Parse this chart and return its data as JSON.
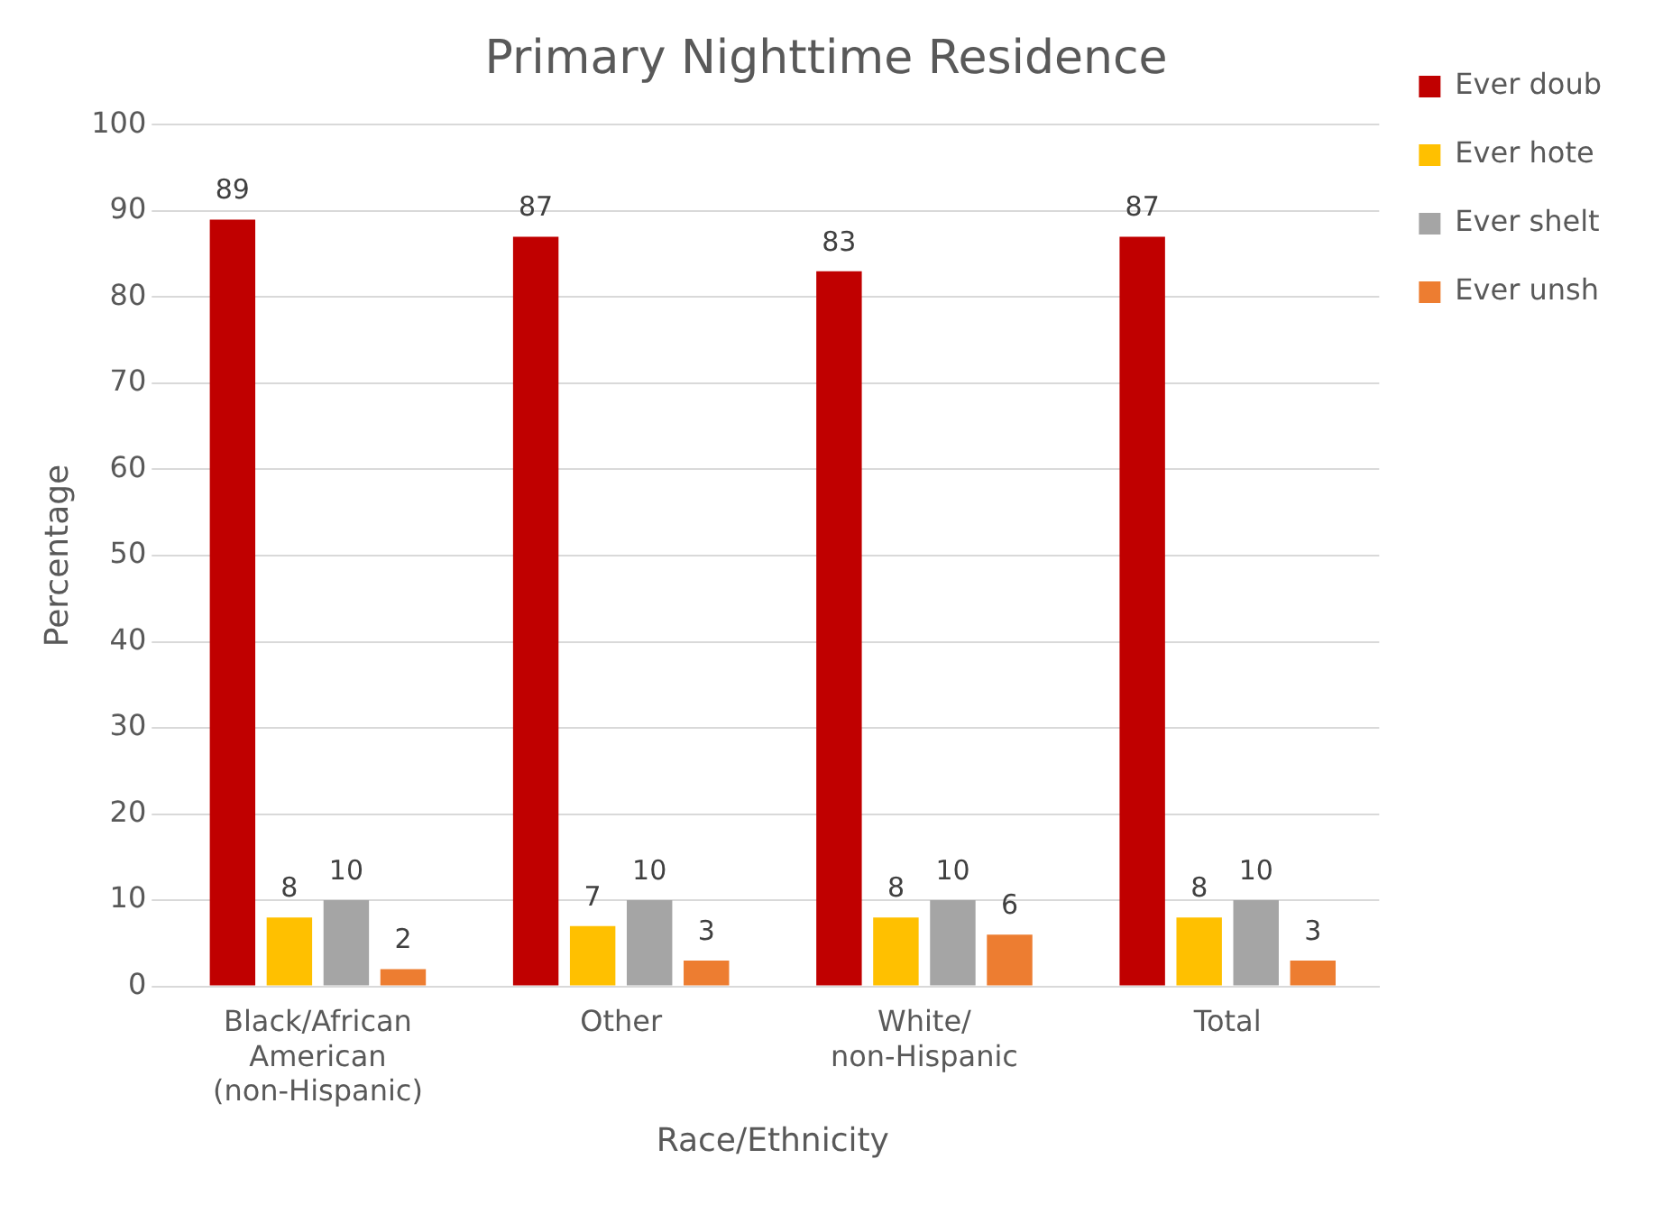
{
  "chart_data": {
    "type": "bar",
    "title": "Primary Nighttime Residence",
    "xlabel": "Race/Ethnicity",
    "ylabel": "Percentage",
    "categories": [
      "Black/African American (non-Hispanic)",
      "Other",
      "White/ non-Hispanic",
      "Total"
    ],
    "series": [
      {
        "name": "Ever doub",
        "color": "#c00000",
        "values": [
          89,
          87,
          83,
          87
        ]
      },
      {
        "name": "Ever hote",
        "color": "#ffc000",
        "values": [
          8,
          7,
          8,
          8
        ]
      },
      {
        "name": "Ever shelt",
        "color": "#a5a5a5",
        "values": [
          10,
          10,
          10,
          10
        ]
      },
      {
        "name": "Ever unsh",
        "color": "#ed7d31",
        "values": [
          2,
          3,
          6,
          3
        ]
      }
    ],
    "ylim": [
      0,
      100
    ],
    "yticks": [
      0,
      10,
      20,
      30,
      40,
      50,
      60,
      70,
      80,
      90,
      100
    ],
    "grid": "y",
    "legend": "right",
    "data_labels": true
  }
}
